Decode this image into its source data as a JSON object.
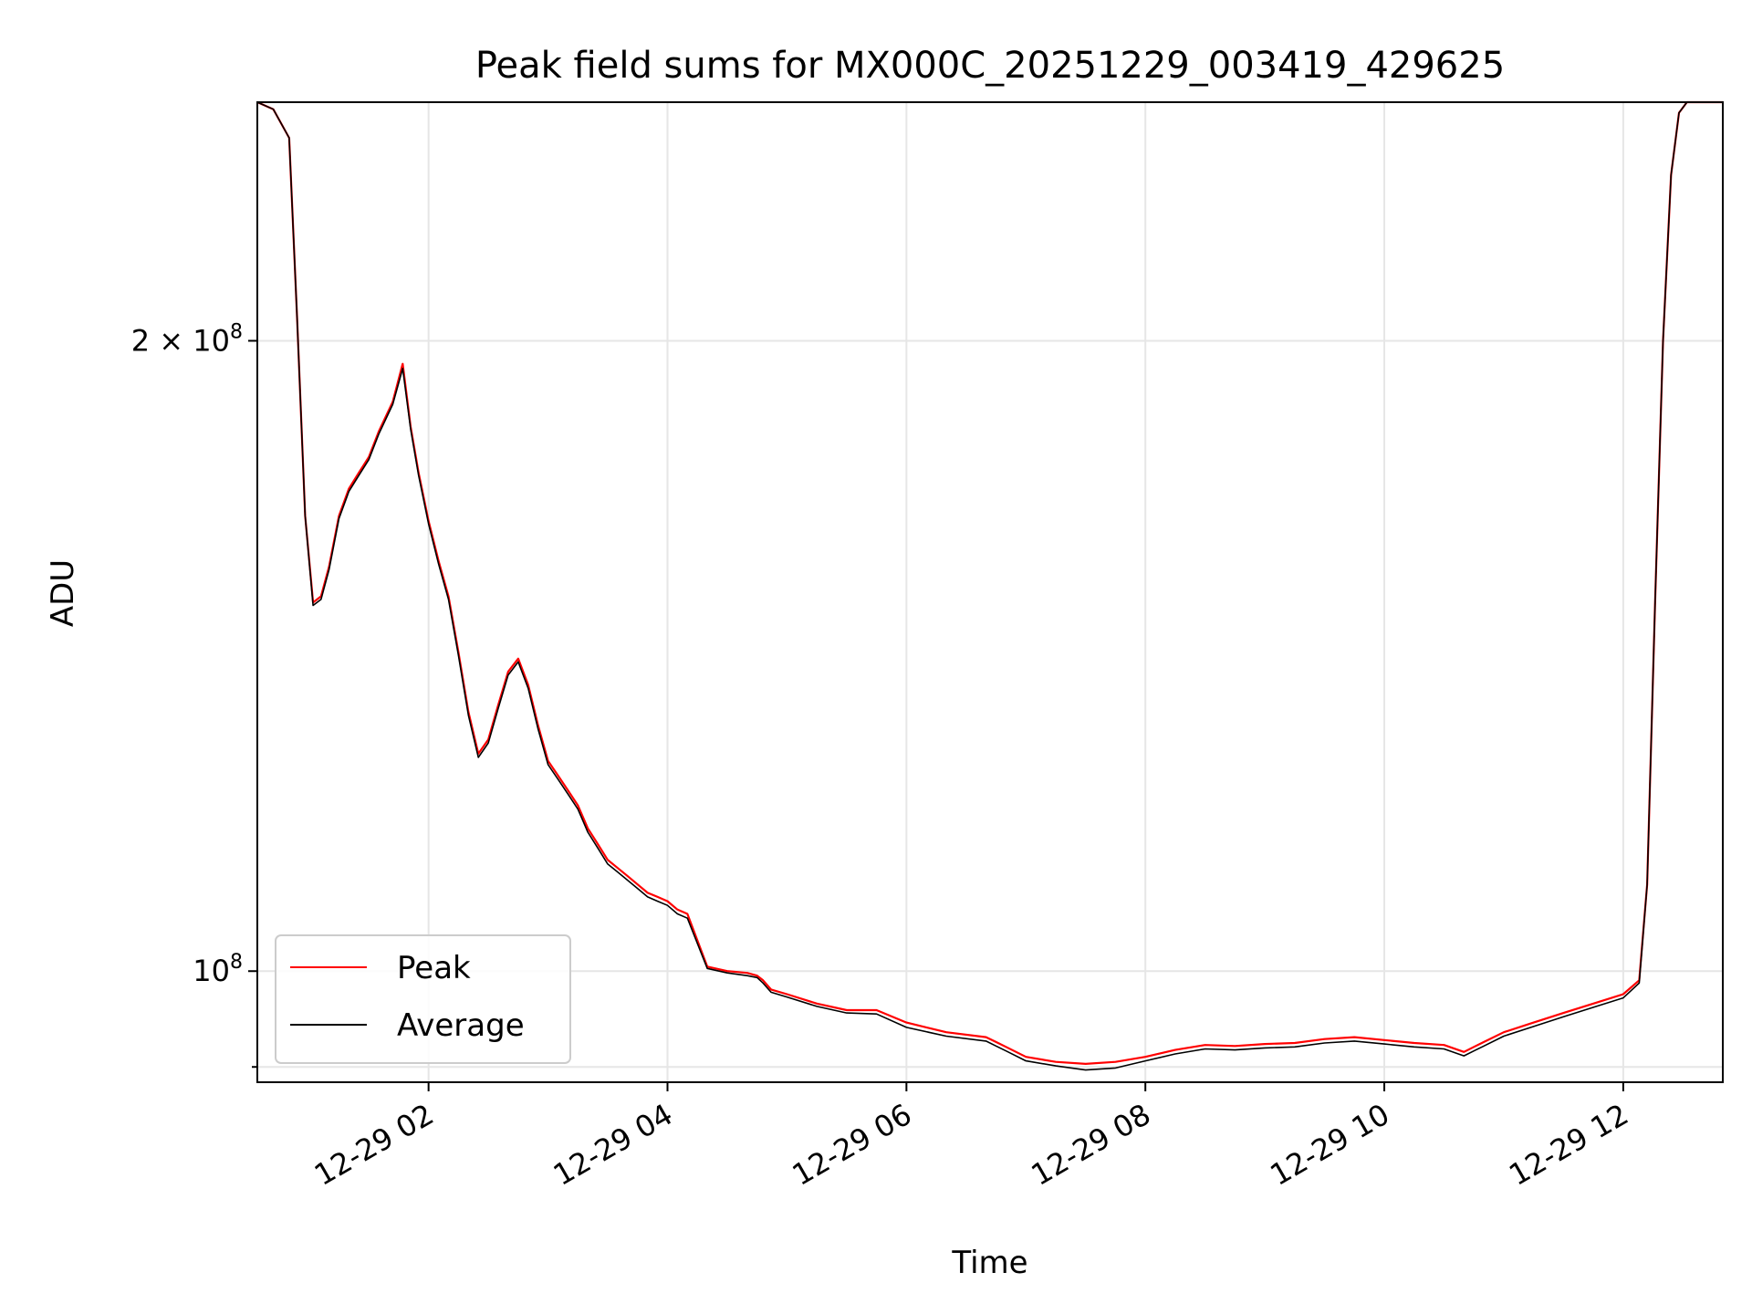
{
  "chart_data": {
    "type": "line",
    "title": "Peak field sums for MX000C_20251229_003419_429625",
    "xlabel": "Time",
    "ylabel": "ADU",
    "y_scale": "log",
    "x_axis_type": "datetime",
    "xlim": [
      "2025-12-29 00:34",
      "2025-12-29 12:50"
    ],
    "ylim": [
      88500000,
      260000000
    ],
    "grid": true,
    "legend_position": "lower-left",
    "x_ticks": [
      {
        "value": "2025-12-29 02:00",
        "label": "12-29 02"
      },
      {
        "value": "2025-12-29 04:00",
        "label": "12-29 04"
      },
      {
        "value": "2025-12-29 06:00",
        "label": "12-29 06"
      },
      {
        "value": "2025-12-29 08:00",
        "label": "12-29 08"
      },
      {
        "value": "2025-12-29 10:00",
        "label": "12-29 10"
      },
      {
        "value": "2025-12-29 12:00",
        "label": "12-29 12"
      }
    ],
    "y_ticks": [
      {
        "value": 200000000,
        "label": "2 × 10^8",
        "mantissa": "2 × 10",
        "exponent": "8"
      },
      {
        "value": 100000000,
        "label": "10^8",
        "mantissa": "10",
        "exponent": "8"
      }
    ],
    "y_minor_ticks": [
      90000000
    ],
    "series": [
      {
        "name": "Peak",
        "color": "#ff0000",
        "x": [
          "2025-12-29 00:34",
          "2025-12-29 00:42",
          "2025-12-29 00:50",
          "2025-12-29 00:54",
          "2025-12-29 00:58",
          "2025-12-29 01:02",
          "2025-12-29 01:06",
          "2025-12-29 01:10",
          "2025-12-29 01:15",
          "2025-12-29 01:20",
          "2025-12-29 01:25",
          "2025-12-29 01:30",
          "2025-12-29 01:35",
          "2025-12-29 01:42",
          "2025-12-29 01:47",
          "2025-12-29 01:51",
          "2025-12-29 01:55",
          "2025-12-29 02:00",
          "2025-12-29 02:05",
          "2025-12-29 02:10",
          "2025-12-29 02:15",
          "2025-12-29 02:20",
          "2025-12-29 02:25",
          "2025-12-29 02:30",
          "2025-12-29 02:35",
          "2025-12-29 02:40",
          "2025-12-29 02:45",
          "2025-12-29 02:50",
          "2025-12-29 02:55",
          "2025-12-29 03:00",
          "2025-12-29 03:05",
          "2025-12-29 03:10",
          "2025-12-29 03:15",
          "2025-12-29 03:20",
          "2025-12-29 03:25",
          "2025-12-29 03:30",
          "2025-12-29 03:35",
          "2025-12-29 03:40",
          "2025-12-29 03:45",
          "2025-12-29 03:50",
          "2025-12-29 03:55",
          "2025-12-29 04:00",
          "2025-12-29 04:05",
          "2025-12-29 04:10",
          "2025-12-29 04:20",
          "2025-12-29 04:30",
          "2025-12-29 04:40",
          "2025-12-29 04:45",
          "2025-12-29 04:48",
          "2025-12-29 04:52",
          "2025-12-29 05:00",
          "2025-12-29 05:15",
          "2025-12-29 05:30",
          "2025-12-29 05:45",
          "2025-12-29 06:00",
          "2025-12-29 06:20",
          "2025-12-29 06:40",
          "2025-12-29 06:45",
          "2025-12-29 06:50",
          "2025-12-29 07:00",
          "2025-12-29 07:15",
          "2025-12-29 07:30",
          "2025-12-29 07:45",
          "2025-12-29 08:00",
          "2025-12-29 08:15",
          "2025-12-29 08:30",
          "2025-12-29 08:45",
          "2025-12-29 09:00",
          "2025-12-29 09:15",
          "2025-12-29 09:30",
          "2025-12-29 09:45",
          "2025-12-29 10:00",
          "2025-12-29 10:15",
          "2025-12-29 10:30",
          "2025-12-29 10:40",
          "2025-12-29 10:45",
          "2025-12-29 10:50",
          "2025-12-29 11:00",
          "2025-12-29 11:15",
          "2025-12-29 11:30",
          "2025-12-29 11:45",
          "2025-12-29 12:00",
          "2025-12-29 12:08",
          "2025-12-29 12:12",
          "2025-12-29 12:16",
          "2025-12-29 12:20",
          "2025-12-29 12:24",
          "2025-12-29 12:28",
          "2025-12-29 12:32",
          "2025-12-29 12:36",
          "2025-12-29 12:50"
        ],
        "values": [
          260000000,
          258000000,
          250000000,
          205000000,
          165000000,
          150000000,
          151000000,
          156000000,
          165000000,
          170000000,
          173000000,
          176000000,
          181000000,
          187000000,
          195000000,
          182000000,
          173000000,
          164000000,
          157000000,
          151000000,
          142000000,
          133000000,
          127000000,
          129000000,
          134000000,
          139000000,
          141000000,
          137000000,
          131000000,
          126000000,
          124000000,
          122000000,
          120000000,
          117000000,
          115000000,
          113000000,
          112000000,
          111000000,
          110000000,
          109000000,
          108500000,
          108000000,
          107000000,
          106500000,
          100500000,
          100000000,
          99800000,
          99500000,
          99000000,
          98000000,
          97500000,
          96500000,
          95800000,
          95800000,
          94500000,
          93500000,
          93000000,
          92500000,
          92000000,
          91000000,
          90500000,
          90300000,
          90500000,
          91000000,
          91700000,
          92200000,
          92100000,
          92300000,
          92400000,
          92800000,
          93000000,
          92700000,
          92400000,
          92200000,
          91500000,
          92000000,
          92500000,
          93500000,
          94500000,
          95500000,
          96500000,
          97500000,
          99000000,
          110000000,
          150000000,
          200000000,
          240000000,
          257000000,
          260000000,
          260000000,
          260000000
        ]
      },
      {
        "name": "Average",
        "color": "#000000",
        "x": [
          "2025-12-29 00:34",
          "2025-12-29 00:42",
          "2025-12-29 00:50",
          "2025-12-29 00:54",
          "2025-12-29 00:58",
          "2025-12-29 01:02",
          "2025-12-29 01:06",
          "2025-12-29 01:10",
          "2025-12-29 01:15",
          "2025-12-29 01:20",
          "2025-12-29 01:25",
          "2025-12-29 01:30",
          "2025-12-29 01:35",
          "2025-12-29 01:42",
          "2025-12-29 01:47",
          "2025-12-29 01:51",
          "2025-12-29 01:55",
          "2025-12-29 02:00",
          "2025-12-29 02:05",
          "2025-12-29 02:10",
          "2025-12-29 02:15",
          "2025-12-29 02:20",
          "2025-12-29 02:25",
          "2025-12-29 02:30",
          "2025-12-29 02:35",
          "2025-12-29 02:40",
          "2025-12-29 02:45",
          "2025-12-29 02:50",
          "2025-12-29 02:55",
          "2025-12-29 03:00",
          "2025-12-29 03:05",
          "2025-12-29 03:10",
          "2025-12-29 03:15",
          "2025-12-29 03:20",
          "2025-12-29 03:25",
          "2025-12-29 03:30",
          "2025-12-29 03:35",
          "2025-12-29 03:40",
          "2025-12-29 03:45",
          "2025-12-29 03:50",
          "2025-12-29 03:55",
          "2025-12-29 04:00",
          "2025-12-29 04:05",
          "2025-12-29 04:10",
          "2025-12-29 04:20",
          "2025-12-29 04:30",
          "2025-12-29 04:40",
          "2025-12-29 04:45",
          "2025-12-29 04:48",
          "2025-12-29 04:52",
          "2025-12-29 05:00",
          "2025-12-29 05:15",
          "2025-12-29 05:30",
          "2025-12-29 05:45",
          "2025-12-29 06:00",
          "2025-12-29 06:20",
          "2025-12-29 06:40",
          "2025-12-29 06:45",
          "2025-12-29 06:50",
          "2025-12-29 07:00",
          "2025-12-29 07:15",
          "2025-12-29 07:30",
          "2025-12-29 07:45",
          "2025-12-29 08:00",
          "2025-12-29 08:15",
          "2025-12-29 08:30",
          "2025-12-29 08:45",
          "2025-12-29 09:00",
          "2025-12-29 09:15",
          "2025-12-29 09:30",
          "2025-12-29 09:45",
          "2025-12-29 10:00",
          "2025-12-29 10:15",
          "2025-12-29 10:30",
          "2025-12-29 10:40",
          "2025-12-29 10:45",
          "2025-12-29 10:50",
          "2025-12-29 11:00",
          "2025-12-29 11:15",
          "2025-12-29 11:30",
          "2025-12-29 11:45",
          "2025-12-29 12:00",
          "2025-12-29 12:08",
          "2025-12-29 12:12",
          "2025-12-29 12:16",
          "2025-12-29 12:20",
          "2025-12-29 12:24",
          "2025-12-29 12:28",
          "2025-12-29 12:32",
          "2025-12-29 12:36",
          "2025-12-29 12:50"
        ],
        "values": [
          260000000,
          258000000,
          250000000,
          205000000,
          165000000,
          149500000,
          150500000,
          155500000,
          164500000,
          169500000,
          172500000,
          175500000,
          180500000,
          186500000,
          194000000,
          181500000,
          172500000,
          163500000,
          156500000,
          150500000,
          141500000,
          132500000,
          126500000,
          128500000,
          133500000,
          138500000,
          140500000,
          136500000,
          130500000,
          125500000,
          123500000,
          121500000,
          119500000,
          116500000,
          114500000,
          112500000,
          111500000,
          110500000,
          109500000,
          108500000,
          108000000,
          107500000,
          106500000,
          106000000,
          100300000,
          99800000,
          99500000,
          99300000,
          98700000,
          97700000,
          97200000,
          96200000,
          95500000,
          95400000,
          94000000,
          93100000,
          92600000,
          92100000,
          91600000,
          90600000,
          90100000,
          89700000,
          89900000,
          90600000,
          91300000,
          91800000,
          91700000,
          91900000,
          92000000,
          92400000,
          92600000,
          92300000,
          92000000,
          91800000,
          91100000,
          91600000,
          92100000,
          93100000,
          94100000,
          95100000,
          96100000,
          97100000,
          98700000,
          110000000,
          150000000,
          200000000,
          240000000,
          257000000,
          260000000,
          260000000,
          260000000
        ]
      }
    ]
  }
}
